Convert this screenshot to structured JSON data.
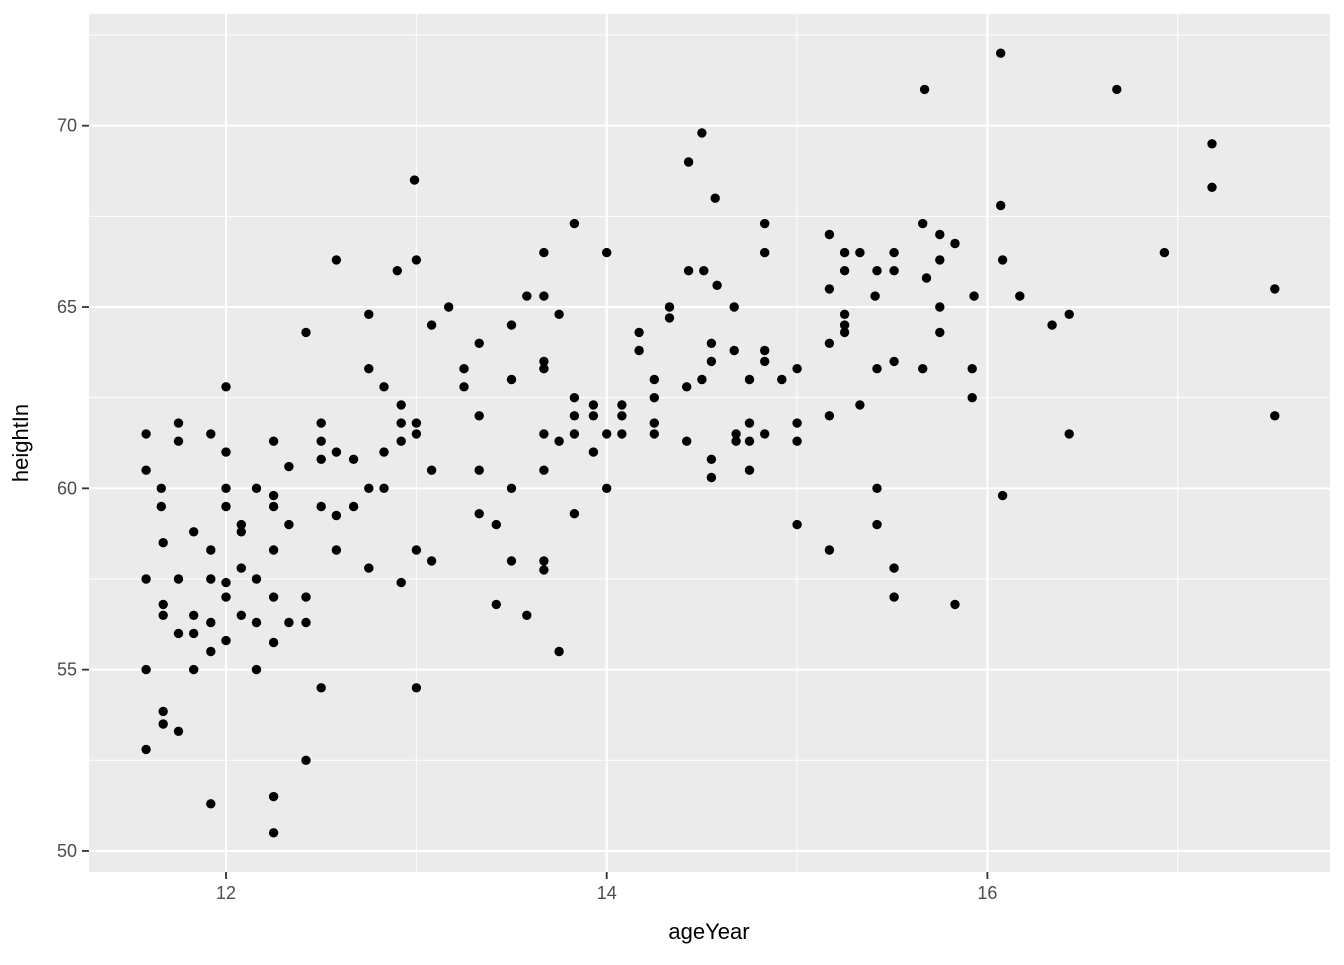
{
  "chart_data": {
    "type": "scatter",
    "title": "",
    "xlabel": "ageYear",
    "ylabel": "heightIn",
    "legend": "none",
    "grid": true,
    "xlim": [
      11.28,
      17.8
    ],
    "ylim": [
      49.42,
      73.08
    ],
    "x_ticks": [
      12,
      14,
      16
    ],
    "x_minor_ticks": [
      13,
      15,
      17
    ],
    "y_ticks": [
      50,
      55,
      60,
      65,
      70
    ],
    "y_minor_ticks": [
      52.5,
      57.5,
      62.5,
      67.5,
      72.5
    ],
    "style": {
      "panel_bg": "#EBEBEB",
      "grid_color": "#FFFFFF",
      "point_color": "#000000",
      "tick_label_color": "#4D4D4D",
      "tick_mark_color": "#333333",
      "axis_title_color": "#000000",
      "outer_bg": "#FFFFFF"
    },
    "points": [
      [
        11.58,
        61.5
      ],
      [
        11.58,
        60.5
      ],
      [
        11.58,
        57.5
      ],
      [
        11.58,
        55.0
      ],
      [
        11.58,
        52.8
      ],
      [
        11.66,
        60.0
      ],
      [
        11.66,
        59.5
      ],
      [
        11.67,
        58.5
      ],
      [
        11.67,
        56.8
      ],
      [
        11.67,
        56.5
      ],
      [
        11.67,
        53.85
      ],
      [
        11.67,
        53.5
      ],
      [
        11.75,
        61.8
      ],
      [
        11.75,
        61.3
      ],
      [
        11.75,
        57.5
      ],
      [
        11.75,
        56.0
      ],
      [
        11.75,
        53.3
      ],
      [
        11.83,
        58.8
      ],
      [
        11.83,
        56.5
      ],
      [
        11.83,
        56.0
      ],
      [
        11.83,
        55.0
      ],
      [
        11.92,
        61.5
      ],
      [
        11.92,
        58.3
      ],
      [
        11.92,
        57.5
      ],
      [
        11.92,
        56.3
      ],
      [
        11.92,
        55.5
      ],
      [
        11.92,
        51.3
      ],
      [
        12.0,
        62.8
      ],
      [
        12.0,
        61.0
      ],
      [
        12.0,
        60.0
      ],
      [
        12.0,
        59.5
      ],
      [
        12.0,
        57.4
      ],
      [
        12.0,
        57.0
      ],
      [
        12.0,
        55.8
      ],
      [
        12.08,
        59.0
      ],
      [
        12.08,
        58.8
      ],
      [
        12.08,
        57.8
      ],
      [
        12.08,
        56.5
      ],
      [
        12.16,
        60.0
      ],
      [
        12.16,
        57.5
      ],
      [
        12.16,
        56.3
      ],
      [
        12.16,
        55.0
      ],
      [
        12.25,
        61.3
      ],
      [
        12.25,
        59.8
      ],
      [
        12.25,
        59.5
      ],
      [
        12.25,
        58.3
      ],
      [
        12.25,
        57.0
      ],
      [
        12.25,
        55.75
      ],
      [
        12.25,
        51.5
      ],
      [
        12.25,
        50.5
      ],
      [
        12.33,
        60.6
      ],
      [
        12.33,
        59.0
      ],
      [
        12.33,
        56.3
      ],
      [
        12.42,
        64.3
      ],
      [
        12.42,
        57.0
      ],
      [
        12.42,
        56.3
      ],
      [
        12.42,
        52.5
      ],
      [
        12.5,
        61.8
      ],
      [
        12.5,
        61.3
      ],
      [
        12.5,
        60.8
      ],
      [
        12.5,
        59.5
      ],
      [
        12.5,
        54.5
      ],
      [
        12.58,
        66.3
      ],
      [
        12.58,
        61.0
      ],
      [
        12.58,
        59.25
      ],
      [
        12.58,
        58.3
      ],
      [
        12.67,
        60.8
      ],
      [
        12.67,
        59.5
      ],
      [
        12.75,
        64.8
      ],
      [
        12.75,
        63.3
      ],
      [
        12.75,
        60.0
      ],
      [
        12.75,
        57.8
      ],
      [
        12.83,
        62.8
      ],
      [
        12.83,
        61.0
      ],
      [
        12.83,
        60.0
      ],
      [
        12.9,
        66.0
      ],
      [
        12.92,
        62.3
      ],
      [
        12.92,
        61.8
      ],
      [
        12.92,
        61.3
      ],
      [
        12.92,
        57.4
      ],
      [
        12.99,
        68.5
      ],
      [
        13.0,
        66.3
      ],
      [
        13.0,
        61.8
      ],
      [
        13.0,
        61.5
      ],
      [
        13.0,
        58.3
      ],
      [
        13.0,
        54.5
      ],
      [
        13.08,
        64.5
      ],
      [
        13.08,
        60.5
      ],
      [
        13.08,
        58.0
      ],
      [
        13.17,
        65.0
      ],
      [
        13.25,
        63.3
      ],
      [
        13.25,
        62.8
      ],
      [
        13.33,
        64.0
      ],
      [
        13.33,
        62.0
      ],
      [
        13.33,
        60.5
      ],
      [
        13.33,
        59.3
      ],
      [
        13.42,
        59.0
      ],
      [
        13.42,
        56.8
      ],
      [
        13.5,
        64.5
      ],
      [
        13.5,
        63.0
      ],
      [
        13.5,
        60.0
      ],
      [
        13.5,
        58.0
      ],
      [
        13.58,
        65.3
      ],
      [
        13.58,
        56.5
      ],
      [
        13.67,
        66.5
      ],
      [
        13.67,
        65.3
      ],
      [
        13.67,
        63.5
      ],
      [
        13.67,
        63.3
      ],
      [
        13.67,
        61.5
      ],
      [
        13.67,
        60.5
      ],
      [
        13.67,
        58.0
      ],
      [
        13.67,
        57.75
      ],
      [
        13.75,
        64.8
      ],
      [
        13.75,
        61.3
      ],
      [
        13.75,
        55.5
      ],
      [
        13.83,
        67.3
      ],
      [
        13.83,
        62.5
      ],
      [
        13.83,
        62.0
      ],
      [
        13.83,
        61.5
      ],
      [
        13.83,
        59.3
      ],
      [
        13.93,
        62.3
      ],
      [
        13.93,
        62.0
      ],
      [
        13.93,
        61.0
      ],
      [
        14.0,
        66.5
      ],
      [
        14.0,
        61.5
      ],
      [
        14.0,
        60.0
      ],
      [
        14.08,
        62.3
      ],
      [
        14.08,
        62.0
      ],
      [
        14.08,
        61.5
      ],
      [
        14.17,
        64.3
      ],
      [
        14.17,
        63.8
      ],
      [
        14.25,
        63.0
      ],
      [
        14.25,
        62.5
      ],
      [
        14.25,
        61.8
      ],
      [
        14.25,
        61.5
      ],
      [
        14.33,
        65.0
      ],
      [
        14.33,
        64.7
      ],
      [
        14.42,
        62.8
      ],
      [
        14.42,
        61.3
      ],
      [
        14.43,
        69.0
      ],
      [
        14.43,
        66.0
      ],
      [
        14.5,
        69.8
      ],
      [
        14.5,
        63.0
      ],
      [
        14.51,
        66.0
      ],
      [
        14.55,
        64.0
      ],
      [
        14.55,
        63.5
      ],
      [
        14.55,
        60.8
      ],
      [
        14.55,
        60.3
      ],
      [
        14.57,
        68.0
      ],
      [
        14.58,
        65.6
      ],
      [
        14.67,
        65.0
      ],
      [
        14.67,
        63.8
      ],
      [
        14.68,
        61.5
      ],
      [
        14.68,
        61.3
      ],
      [
        14.75,
        63.0
      ],
      [
        14.75,
        61.8
      ],
      [
        14.75,
        61.3
      ],
      [
        14.75,
        60.5
      ],
      [
        14.83,
        67.3
      ],
      [
        14.83,
        66.5
      ],
      [
        14.83,
        63.8
      ],
      [
        14.83,
        63.5
      ],
      [
        14.83,
        61.5
      ],
      [
        14.92,
        63.0
      ],
      [
        15.0,
        63.3
      ],
      [
        15.0,
        61.8
      ],
      [
        15.0,
        61.3
      ],
      [
        15.0,
        59.0
      ],
      [
        15.17,
        67.0
      ],
      [
        15.17,
        65.5
      ],
      [
        15.17,
        64.0
      ],
      [
        15.17,
        62.0
      ],
      [
        15.17,
        58.3
      ],
      [
        15.25,
        66.5
      ],
      [
        15.25,
        66.0
      ],
      [
        15.25,
        64.8
      ],
      [
        15.25,
        64.5
      ],
      [
        15.25,
        64.3
      ],
      [
        15.33,
        66.5
      ],
      [
        15.33,
        62.3
      ],
      [
        15.41,
        65.3
      ],
      [
        15.42,
        66.0
      ],
      [
        15.42,
        63.3
      ],
      [
        15.42,
        60.0
      ],
      [
        15.42,
        59.0
      ],
      [
        15.51,
        66.5
      ],
      [
        15.51,
        66.0
      ],
      [
        15.51,
        63.5
      ],
      [
        15.51,
        57.8
      ],
      [
        15.51,
        57.0
      ],
      [
        15.66,
        67.3
      ],
      [
        15.66,
        63.3
      ],
      [
        15.67,
        71.0
      ],
      [
        15.68,
        65.8
      ],
      [
        15.75,
        67.0
      ],
      [
        15.75,
        66.3
      ],
      [
        15.75,
        65.0
      ],
      [
        15.75,
        64.3
      ],
      [
        15.83,
        66.75
      ],
      [
        15.83,
        56.8
      ],
      [
        15.92,
        63.3
      ],
      [
        15.92,
        62.5
      ],
      [
        15.93,
        65.3
      ],
      [
        16.07,
        72.0
      ],
      [
        16.07,
        67.8
      ],
      [
        16.08,
        66.3
      ],
      [
        16.08,
        59.8
      ],
      [
        16.17,
        65.3
      ],
      [
        16.34,
        64.5
      ],
      [
        16.43,
        64.8
      ],
      [
        16.43,
        61.5
      ],
      [
        16.68,
        71.0
      ],
      [
        16.93,
        66.5
      ],
      [
        17.18,
        69.5
      ],
      [
        17.18,
        68.3
      ],
      [
        17.51,
        65.5
      ],
      [
        17.51,
        62.0
      ]
    ]
  }
}
